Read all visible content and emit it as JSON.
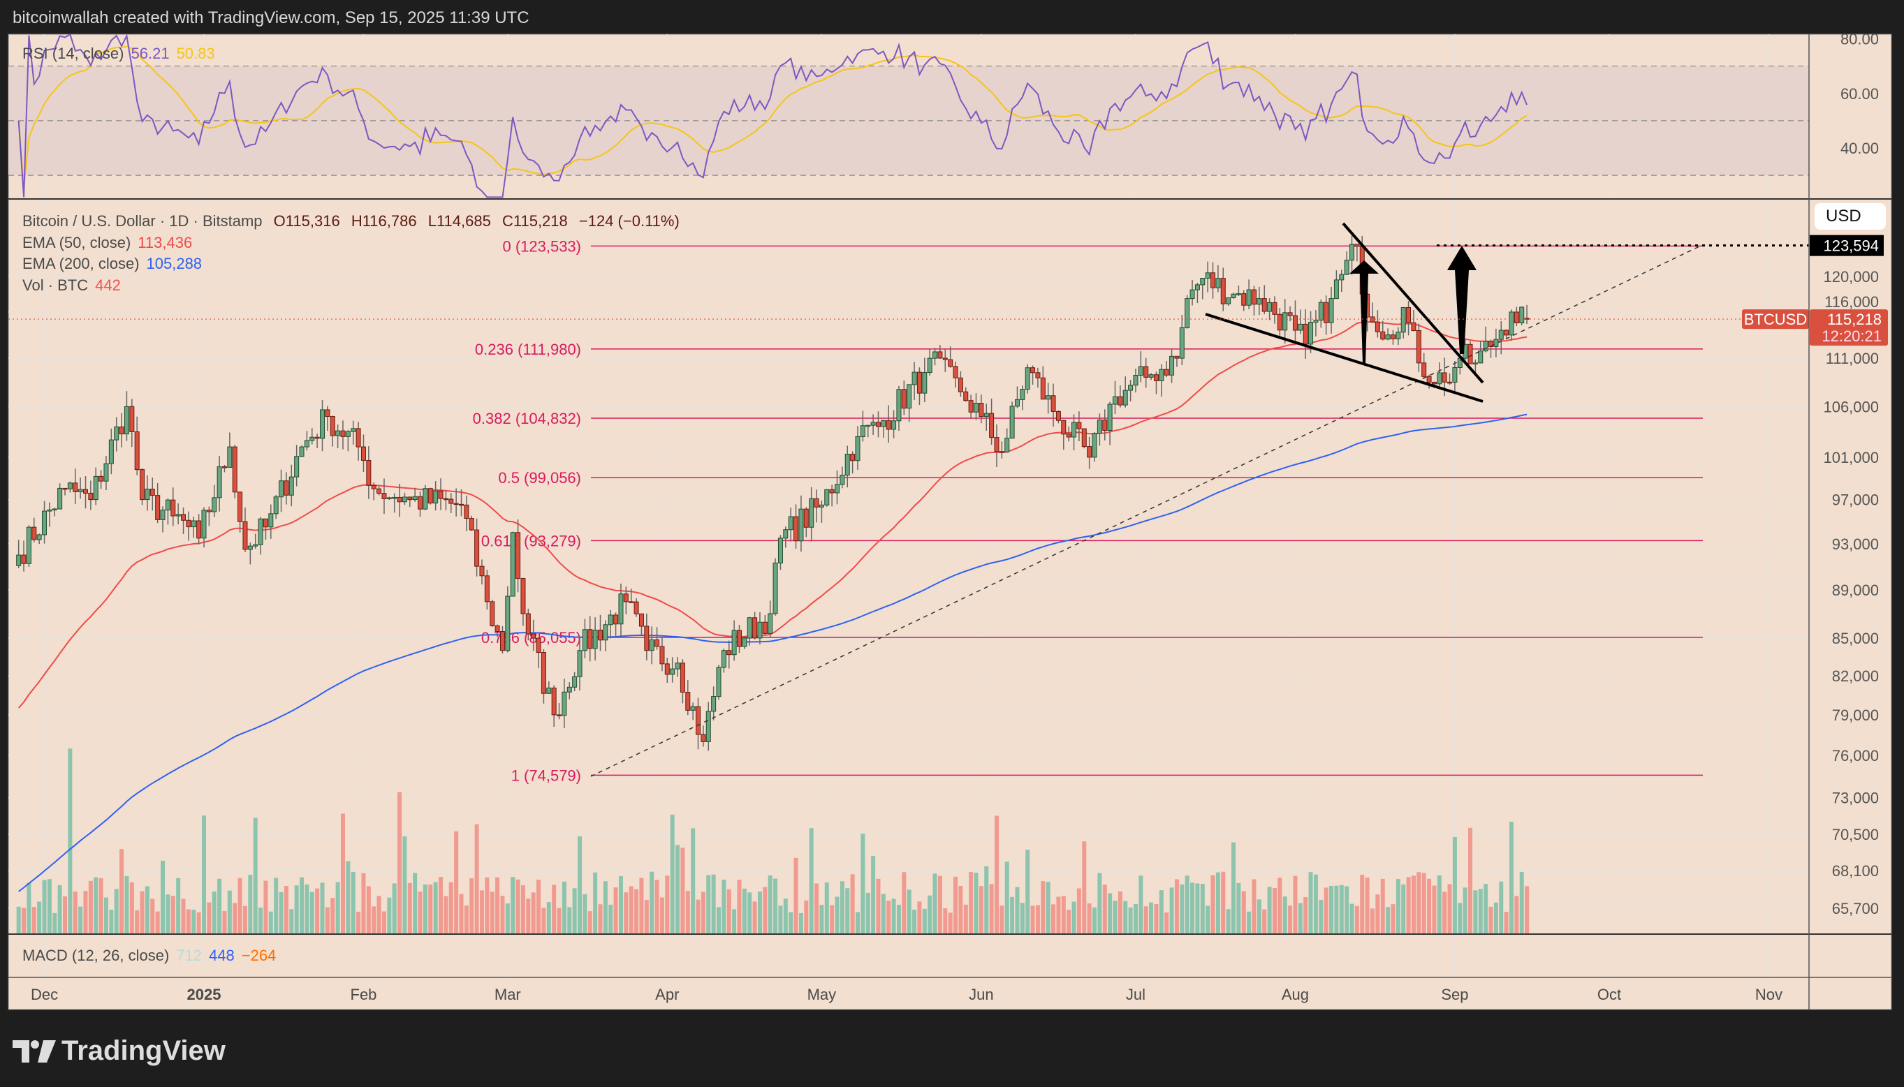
{
  "header": {
    "credit": "bitcoinwallah created with TradingView.com, Sep 15, 2025 11:39 UTC"
  },
  "logo": {
    "text": "TradingView"
  },
  "currency_button": "USD",
  "legend": {
    "symbol": "Bitcoin / U.S. Dollar · 1D · Bitstamp",
    "o": "O115,316",
    "h": "H116,786",
    "l": "L114,685",
    "c": "C115,218",
    "chg": "−124 (−0.11%)",
    "ema50_label": "EMA (50, close)",
    "ema50_value": "113,436",
    "ema200_label": "EMA (200, close)",
    "ema200_value": "105,288",
    "vol_label": "Vol · BTC",
    "vol_value": "442",
    "rsi_label": "RSI (14, close)",
    "rsi_value": "56.21",
    "rsi_ma_value": "50.83",
    "macd_label": "MACD (12, 26, close)",
    "macd_value": "712",
    "macd_signal": "448",
    "macd_hist": "−264"
  },
  "price_labels": {
    "symbol_tag": "BTCUSD",
    "last": "115,218",
    "countdown": "12:20:21",
    "target": "123,594"
  },
  "colors": {
    "bg": "#f2dfcf",
    "up": "#6aa583",
    "down": "#d9503f",
    "ema50": "#ef4b4b",
    "ema200": "#2f62f0",
    "rsi": "#7e57c2",
    "rsi_ma": "#f5c518",
    "fib": "#d81b60"
  },
  "chart_data": {
    "type": "candlestick",
    "scale": "log",
    "x_ticks": [
      "Dec",
      "2025",
      "Feb",
      "Mar",
      "Apr",
      "May",
      "Jun",
      "Jul",
      "Aug",
      "Sep",
      "Oct",
      "Nov"
    ],
    "y_ticks": [
      "120,000",
      "116,000",
      "111,000",
      "106,000",
      "101,000",
      "97,000",
      "93,000",
      "89,000",
      "85,000",
      "82,000",
      "79,000",
      "76,000",
      "73,000",
      "70,500",
      "68,100",
      "65,700"
    ],
    "y_tick_values": [
      120000,
      116000,
      111000,
      106000,
      101000,
      97000,
      93000,
      89000,
      85000,
      82000,
      79000,
      76000,
      73000,
      70500,
      68100,
      65700
    ],
    "rsi_ticks": [
      "80.00",
      "60.00",
      "40.00"
    ],
    "rsi_tick_values": [
      80,
      60,
      40
    ],
    "fib_levels": [
      {
        "label": "0 (123,533)",
        "price": 123533
      },
      {
        "label": "0.236 (111,980)",
        "price": 111980
      },
      {
        "label": "0.382 (104,832)",
        "price": 104832
      },
      {
        "label": "0.5 (99,056)",
        "price": 99056
      },
      {
        "label": "0.618 (93,279)",
        "price": 93279
      },
      {
        "label": "0.786 (85,055)",
        "price": 85055
      },
      {
        "label": "1 (74,579)",
        "price": 74579
      }
    ],
    "close_keypoints": [
      [
        "2024-11-26",
        92000
      ],
      [
        "2024-12-05",
        98000
      ],
      [
        "2024-12-10",
        97000
      ],
      [
        "2024-12-17",
        106000
      ],
      [
        "2024-12-20",
        97000
      ],
      [
        "2024-12-26",
        95500
      ],
      [
        "2024-12-31",
        93500
      ],
      [
        "2025-01-06",
        102000
      ],
      [
        "2025-01-09",
        92500
      ],
      [
        "2025-01-13",
        94500
      ],
      [
        "2025-01-20",
        102000
      ],
      [
        "2025-01-25",
        105000
      ],
      [
        "2025-01-31",
        102000
      ],
      [
        "2025-02-03",
        98000
      ],
      [
        "2025-02-10",
        97000
      ],
      [
        "2025-02-20",
        96500
      ],
      [
        "2025-02-25",
        88000
      ],
      [
        "2025-02-28",
        84000
      ],
      [
        "2025-03-02",
        94000
      ],
      [
        "2025-03-04",
        87000
      ],
      [
        "2025-03-10",
        79000
      ],
      [
        "2025-03-15",
        84000
      ],
      [
        "2025-03-24",
        88000
      ],
      [
        "2025-03-28",
        84000
      ],
      [
        "2025-04-03",
        83000
      ],
      [
        "2025-04-08",
        77000
      ],
      [
        "2025-04-12",
        84000
      ],
      [
        "2025-04-21",
        87000
      ],
      [
        "2025-04-23",
        93500
      ],
      [
        "2025-05-01",
        96500
      ],
      [
        "2025-05-08",
        103000
      ],
      [
        "2025-05-12",
        104000
      ],
      [
        "2025-05-21",
        109500
      ],
      [
        "2025-05-22",
        111000
      ],
      [
        "2025-05-28",
        107500
      ],
      [
        "2025-06-01",
        105000
      ],
      [
        "2025-06-05",
        101500
      ],
      [
        "2025-06-10",
        110000
      ],
      [
        "2025-06-15",
        105500
      ],
      [
        "2025-06-22",
        101000
      ],
      [
        "2025-06-27",
        107000
      ],
      [
        "2025-07-03",
        109000
      ],
      [
        "2025-07-09",
        111000
      ],
      [
        "2025-07-11",
        117500
      ],
      [
        "2025-07-14",
        119800
      ],
      [
        "2025-07-20",
        118000
      ],
      [
        "2025-07-25",
        117500
      ],
      [
        "2025-08-01",
        114000
      ],
      [
        "2025-08-03",
        112500
      ],
      [
        "2025-08-08",
        117500
      ],
      [
        "2025-08-13",
        123500
      ],
      [
        "2025-08-14",
        118000
      ],
      [
        "2025-08-19",
        113500
      ],
      [
        "2025-08-22",
        116500
      ],
      [
        "2025-08-25",
        110500
      ],
      [
        "2025-08-30",
        108500
      ],
      [
        "2025-09-02",
        111000
      ],
      [
        "2025-09-05",
        110500
      ],
      [
        "2025-09-10",
        114000
      ],
      [
        "2025-09-12",
        116000
      ],
      [
        "2025-09-15",
        115218
      ]
    ],
    "last_candle": {
      "open": 115316,
      "high": 116786,
      "low": 114685,
      "close": 115218
    },
    "annotations": [
      "falling wedge",
      "two upward arrows to 123,594 target",
      "ascending dotted trendline from 74,579 low"
    ]
  }
}
